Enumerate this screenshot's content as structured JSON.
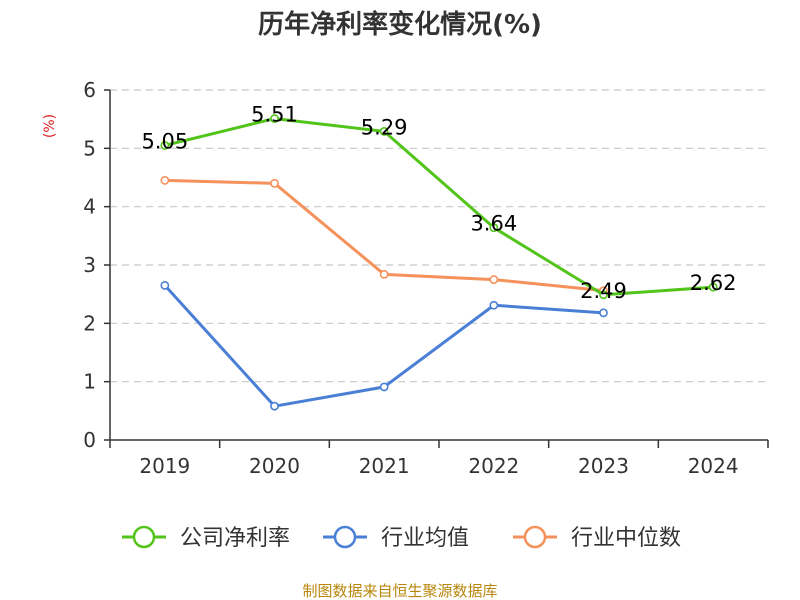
{
  "chart_data": {
    "type": "line",
    "title": "历年净利率变化情况(%)",
    "ylabel": "(%)",
    "xlabel": "",
    "ylim": [
      0,
      6
    ],
    "yticks": [
      "0",
      "1",
      "2",
      "3",
      "4",
      "5",
      "6"
    ],
    "categories": [
      "2019",
      "2020",
      "2021",
      "2022",
      "2023",
      "2024"
    ],
    "grid": true,
    "legend_position": "bottom",
    "series": [
      {
        "name": "公司净利率",
        "color": "#52c41a",
        "values": [
          5.05,
          5.51,
          5.29,
          3.64,
          2.49,
          2.62
        ],
        "labels": [
          "5.05",
          "5.51",
          "5.29",
          "3.64",
          "2.49",
          "2.62"
        ]
      },
      {
        "name": "行业均值",
        "color": "#4a7fd6",
        "values": [
          2.65,
          0.58,
          0.91,
          2.31,
          2.18,
          null
        ]
      },
      {
        "name": "行业中位数",
        "color": "#f5915a",
        "values": [
          4.45,
          4.4,
          2.84,
          2.75,
          2.56,
          null
        ]
      }
    ],
    "source": "制图数据来自恒生聚源数据库"
  }
}
